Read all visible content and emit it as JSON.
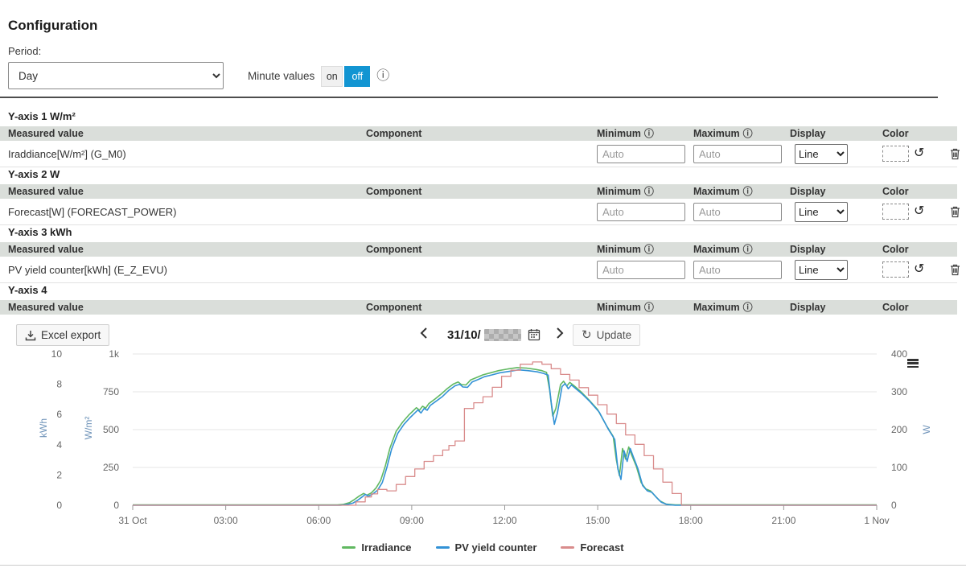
{
  "page": {
    "title": "Configuration"
  },
  "period": {
    "label": "Period:",
    "value": "Day"
  },
  "minute_values": {
    "label": "Minute values",
    "on_label": "on",
    "off_label": "off",
    "active": "off"
  },
  "icons": {
    "info": "ⓘ",
    "reset": "↺",
    "refresh": "↻"
  },
  "table": {
    "columns": {
      "measured": "Measured value",
      "component": "Component",
      "minimum": "Minimum",
      "maximum": "Maximum",
      "display": "Display",
      "color": "Color"
    }
  },
  "controls": {
    "auto_placeholder": "Auto",
    "display_value": "Line"
  },
  "sections": [
    {
      "title": "Y-axis 1 W/m²",
      "row": {
        "measured": "Iraddiance[W/m²] (G_M0)"
      }
    },
    {
      "title": "Y-axis 2 W",
      "row": {
        "measured": "Forecast[W] (FORECAST_POWER)"
      }
    },
    {
      "title": "Y-axis 3 kWh",
      "row": {
        "measured": "PV yield counter[kWh] (E_Z_EVU)"
      }
    },
    {
      "title": "Y-axis 4"
    }
  ],
  "toolbar": {
    "excel_label": "Excel export",
    "date_prefix": "31/10/",
    "update_label": "Update"
  },
  "colors": {
    "accent_blue": "#1295d2",
    "axis_title": "#6d92b8",
    "grid": "#e6e6e6",
    "axis_line": "#999999"
  },
  "chart_data": {
    "type": "line",
    "x_range_hours": [
      0,
      24
    ],
    "x_ticks": [
      {
        "h": 0,
        "label": "31 Oct"
      },
      {
        "h": 3,
        "label": "03:00"
      },
      {
        "h": 6,
        "label": "06:00"
      },
      {
        "h": 9,
        "label": "09:00"
      },
      {
        "h": 12,
        "label": "12:00"
      },
      {
        "h": 15,
        "label": "15:00"
      },
      {
        "h": 18,
        "label": "18:00"
      },
      {
        "h": 21,
        "label": "21:00"
      },
      {
        "h": 24,
        "label": "1 Nov"
      }
    ],
    "y_axes": [
      {
        "id": "kwh",
        "title": "kWh",
        "min": 0,
        "max": 10,
        "tick_values": [
          0,
          2,
          4,
          6,
          8,
          10
        ],
        "tick_labels": [
          "0",
          "2",
          "4",
          "6",
          "8",
          "10"
        ],
        "side": "left"
      },
      {
        "id": "wm2",
        "title": "W/m²",
        "min": 0,
        "max": 1000,
        "tick_values": [
          0,
          250,
          500,
          750,
          1000
        ],
        "tick_labels": [
          "0",
          "250",
          "500",
          "750",
          "1k"
        ],
        "side": "left"
      },
      {
        "id": "w",
        "title": "W",
        "min": 0,
        "max": 400,
        "tick_values": [
          0,
          100,
          200,
          300,
          400
        ],
        "tick_labels": [
          "0",
          "100",
          "200",
          "300",
          "400"
        ],
        "side": "right"
      }
    ],
    "legend_position": "bottom-center",
    "grid": "horizontal",
    "series": [
      {
        "name": "Irradiance",
        "color": "#61b861",
        "axis": "wm2",
        "step": false,
        "points": [
          [
            0,
            2
          ],
          [
            6.6,
            2
          ],
          [
            6.8,
            6
          ],
          [
            7.0,
            18
          ],
          [
            7.15,
            38
          ],
          [
            7.3,
            60
          ],
          [
            7.45,
            78
          ],
          [
            7.55,
            66
          ],
          [
            7.7,
            82
          ],
          [
            7.85,
            115
          ],
          [
            8.0,
            165
          ],
          [
            8.15,
            260
          ],
          [
            8.3,
            380
          ],
          [
            8.5,
            490
          ],
          [
            8.7,
            548
          ],
          [
            8.9,
            595
          ],
          [
            9.05,
            625
          ],
          [
            9.15,
            645
          ],
          [
            9.25,
            628
          ],
          [
            9.35,
            655
          ],
          [
            9.45,
            642
          ],
          [
            9.55,
            672
          ],
          [
            9.75,
            702
          ],
          [
            9.95,
            735
          ],
          [
            10.15,
            772
          ],
          [
            10.35,
            802
          ],
          [
            10.5,
            815
          ],
          [
            10.6,
            798
          ],
          [
            10.75,
            795
          ],
          [
            10.9,
            828
          ],
          [
            11.1,
            845
          ],
          [
            11.3,
            862
          ],
          [
            11.55,
            876
          ],
          [
            11.8,
            890
          ],
          [
            12.1,
            901
          ],
          [
            12.4,
            910
          ],
          [
            12.7,
            907
          ],
          [
            13.0,
            898
          ],
          [
            13.2,
            890
          ],
          [
            13.35,
            878
          ],
          [
            13.45,
            760
          ],
          [
            13.55,
            590
          ],
          [
            13.65,
            640
          ],
          [
            13.8,
            798
          ],
          [
            13.9,
            820
          ],
          [
            14.0,
            788
          ],
          [
            14.1,
            812
          ],
          [
            14.25,
            788
          ],
          [
            14.45,
            752
          ],
          [
            14.7,
            700
          ],
          [
            15.0,
            632
          ],
          [
            15.3,
            520
          ],
          [
            15.5,
            455
          ],
          [
            15.6,
            300
          ],
          [
            15.7,
            195
          ],
          [
            15.8,
            375
          ],
          [
            15.9,
            305
          ],
          [
            16.0,
            385
          ],
          [
            16.1,
            330
          ],
          [
            16.25,
            255
          ],
          [
            16.4,
            150
          ],
          [
            16.55,
            108
          ],
          [
            16.7,
            95
          ],
          [
            16.85,
            62
          ],
          [
            17.0,
            30
          ],
          [
            17.2,
            8
          ],
          [
            17.5,
            2
          ],
          [
            24,
            2
          ]
        ]
      },
      {
        "name": "PV yield counter",
        "color": "#3392d6",
        "axis": "kwh",
        "step": false,
        "points": [
          [
            0,
            0
          ],
          [
            6.7,
            0
          ],
          [
            6.9,
            0.04
          ],
          [
            7.1,
            0.14
          ],
          [
            7.25,
            0.32
          ],
          [
            7.4,
            0.55
          ],
          [
            7.5,
            0.72
          ],
          [
            7.6,
            0.6
          ],
          [
            7.75,
            0.75
          ],
          [
            7.9,
            1.0
          ],
          [
            8.05,
            1.5
          ],
          [
            8.2,
            2.5
          ],
          [
            8.35,
            3.7
          ],
          [
            8.55,
            4.75
          ],
          [
            8.75,
            5.35
          ],
          [
            8.95,
            5.8
          ],
          [
            9.1,
            6.1
          ],
          [
            9.2,
            6.3
          ],
          [
            9.3,
            6.1
          ],
          [
            9.4,
            6.4
          ],
          [
            9.5,
            6.28
          ],
          [
            9.6,
            6.6
          ],
          [
            9.8,
            6.9
          ],
          [
            10.0,
            7.2
          ],
          [
            10.2,
            7.6
          ],
          [
            10.4,
            7.9
          ],
          [
            10.55,
            8.0
          ],
          [
            10.65,
            7.82
          ],
          [
            10.8,
            7.8
          ],
          [
            10.95,
            8.15
          ],
          [
            11.15,
            8.32
          ],
          [
            11.35,
            8.5
          ],
          [
            11.6,
            8.62
          ],
          [
            11.85,
            8.76
          ],
          [
            12.15,
            8.85
          ],
          [
            12.45,
            8.95
          ],
          [
            12.75,
            8.9
          ],
          [
            13.05,
            8.82
          ],
          [
            13.25,
            8.72
          ],
          [
            13.4,
            8.6
          ],
          [
            13.5,
            6.8
          ],
          [
            13.6,
            5.35
          ],
          [
            13.7,
            6.1
          ],
          [
            13.85,
            7.85
          ],
          [
            13.95,
            8.05
          ],
          [
            14.05,
            7.7
          ],
          [
            14.15,
            7.95
          ],
          [
            14.3,
            7.7
          ],
          [
            14.5,
            7.35
          ],
          [
            14.75,
            6.85
          ],
          [
            15.05,
            6.15
          ],
          [
            15.35,
            5.0
          ],
          [
            15.55,
            4.35
          ],
          [
            15.65,
            2.4
          ],
          [
            15.75,
            1.7
          ],
          [
            15.85,
            3.6
          ],
          [
            15.95,
            2.9
          ],
          [
            16.05,
            3.75
          ],
          [
            16.15,
            3.2
          ],
          [
            16.3,
            2.4
          ],
          [
            16.45,
            1.3
          ],
          [
            16.6,
            0.95
          ],
          [
            16.75,
            0.85
          ],
          [
            16.9,
            0.5
          ],
          [
            17.05,
            0.2
          ],
          [
            17.25,
            0.04
          ],
          [
            17.5,
            0
          ],
          [
            24,
            0
          ]
        ]
      },
      {
        "name": "Forecast",
        "color": "#d98c8c",
        "axis": "w",
        "step": true,
        "points": [
          [
            0,
            0
          ],
          [
            6.9,
            0
          ],
          [
            7.2,
            9
          ],
          [
            7.5,
            22
          ],
          [
            7.7,
            30
          ],
          [
            7.9,
            42
          ],
          [
            8.2,
            38
          ],
          [
            8.5,
            55
          ],
          [
            8.8,
            76
          ],
          [
            9.1,
            96
          ],
          [
            9.4,
            116
          ],
          [
            9.7,
            131
          ],
          [
            10.0,
            146
          ],
          [
            10.2,
            158
          ],
          [
            10.4,
            170
          ],
          [
            10.7,
            256
          ],
          [
            11.0,
            271
          ],
          [
            11.3,
            287
          ],
          [
            11.6,
            312
          ],
          [
            11.9,
            341
          ],
          [
            12.2,
            357
          ],
          [
            12.5,
            373
          ],
          [
            12.9,
            379
          ],
          [
            13.2,
            373
          ],
          [
            13.5,
            361
          ],
          [
            13.8,
            346
          ],
          [
            14.1,
            331
          ],
          [
            14.4,
            311
          ],
          [
            14.7,
            291
          ],
          [
            15.0,
            266
          ],
          [
            15.3,
            241
          ],
          [
            15.6,
            216
          ],
          [
            15.9,
            186
          ],
          [
            16.2,
            161
          ],
          [
            16.5,
            131
          ],
          [
            16.8,
            96
          ],
          [
            17.1,
            61
          ],
          [
            17.4,
            31
          ],
          [
            17.7,
            0
          ],
          [
            24,
            0
          ]
        ]
      }
    ]
  }
}
